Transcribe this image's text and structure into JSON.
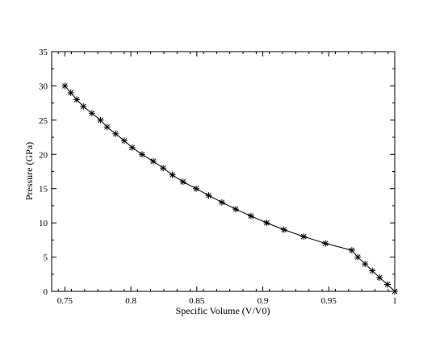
{
  "chart_data": {
    "type": "line",
    "title": "",
    "xlabel": "Specific Volume (V/V0)",
    "ylabel": "Pressure (GPa)",
    "xlim": [
      0.74,
      1.0
    ],
    "ylim": [
      0,
      35
    ],
    "xticks": [
      0.75,
      0.8,
      0.85,
      0.9,
      0.95,
      1.0
    ],
    "xtick_labels": [
      "0.75",
      "0.8",
      "0.85",
      "0.9",
      "0.95",
      "1"
    ],
    "yticks": [
      0,
      5,
      10,
      15,
      20,
      25,
      30,
      35
    ],
    "ytick_labels": [
      "0",
      "5",
      "10",
      "15",
      "20",
      "25",
      "30",
      "35"
    ],
    "grid": false,
    "marker": "asterisk",
    "series": [
      {
        "x": [
          0.75,
          0.7545,
          0.759,
          0.764,
          0.7705,
          0.777,
          0.782,
          0.7885,
          0.795,
          0.801,
          0.8085,
          0.817,
          0.8245,
          0.8315,
          0.8395,
          0.8495,
          0.859,
          0.869,
          0.8795,
          0.891,
          0.903,
          0.916,
          0.931,
          0.9475,
          0.9675,
          0.972,
          0.9775,
          0.983,
          0.9885,
          0.9945,
          1.0
        ],
        "y": [
          30,
          29,
          28,
          27,
          26,
          25,
          24,
          23,
          22,
          21,
          20,
          19,
          18,
          17,
          16,
          15,
          14,
          13,
          12,
          11,
          10,
          9,
          8,
          7,
          6,
          5,
          4,
          3,
          2,
          1,
          0
        ]
      }
    ]
  }
}
